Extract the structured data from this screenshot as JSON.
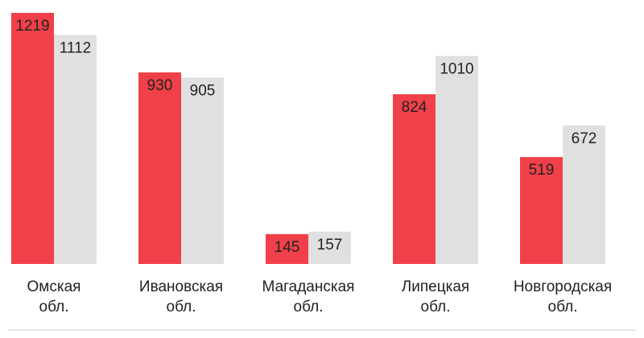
{
  "chart_data": {
    "type": "bar",
    "title": "",
    "xlabel": "",
    "ylabel": "",
    "categories": [
      [
        "Омская",
        "обл."
      ],
      [
        "Ивановская",
        "обл."
      ],
      [
        "Магаданская",
        "обл."
      ],
      [
        "Липецкая",
        "обл."
      ],
      [
        "Новгородская",
        "обл."
      ]
    ],
    "series": [
      {
        "color": "#f04049",
        "values": [
          1219,
          930,
          145,
          824,
          519
        ]
      },
      {
        "color": "#e0e0e0",
        "values": [
          1112,
          905,
          157,
          1010,
          672
        ]
      }
    ],
    "ylim": [
      0,
      1219
    ],
    "grid": false,
    "legend": "none"
  }
}
